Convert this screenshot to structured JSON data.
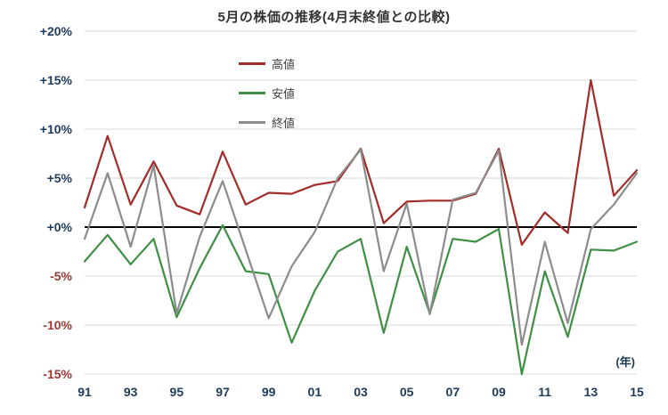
{
  "chart_data": {
    "type": "line",
    "title": "5月の株価の推移(4月末終値との比較)",
    "x_axis_unit": "(年)",
    "x_years": [
      1991,
      1992,
      1993,
      1994,
      1995,
      1996,
      1997,
      1998,
      1999,
      2000,
      2001,
      2002,
      2003,
      2004,
      2005,
      2006,
      2007,
      2008,
      2009,
      2010,
      2011,
      2012,
      2013,
      2014,
      2015
    ],
    "x_tick_indices": [
      0,
      2,
      4,
      6,
      8,
      10,
      12,
      14,
      16,
      18,
      20,
      22,
      24
    ],
    "x_tick_labels": [
      "91",
      "93",
      "95",
      "97",
      "99",
      "01",
      "03",
      "05",
      "07",
      "09",
      "11",
      "13",
      "15"
    ],
    "ylim": [
      -15,
      20
    ],
    "y_ticks": [
      {
        "label": "+20%",
        "value": 20
      },
      {
        "label": "+15%",
        "value": 15
      },
      {
        "label": "+10%",
        "value": 10
      },
      {
        "label": "+5%",
        "value": 5
      },
      {
        "label": "+0%",
        "value": 0
      },
      {
        "label": "-5%",
        "value": -5
      },
      {
        "label": "-10%",
        "value": -10
      },
      {
        "label": "-15%",
        "value": -15
      }
    ],
    "grid": true,
    "legend_position": "inside-upper-left",
    "series": [
      {
        "key": "high",
        "name": "高値",
        "color": "#a12c28",
        "values": [
          2.0,
          9.3,
          2.3,
          6.7,
          2.2,
          1.3,
          7.7,
          2.3,
          3.5,
          3.4,
          4.3,
          4.7,
          8.0,
          0.4,
          2.6,
          2.7,
          2.7,
          3.4,
          8.0,
          -1.8,
          1.5,
          -0.6,
          15.0,
          3.2,
          5.8
        ]
      },
      {
        "key": "low",
        "name": "安値",
        "color": "#3f8f44",
        "values": [
          -3.5,
          -0.8,
          -3.8,
          -1.2,
          -9.2,
          -4.2,
          0.2,
          -4.5,
          -4.8,
          -11.8,
          -6.5,
          -2.5,
          -1.2,
          -10.8,
          -2.0,
          -8.8,
          -1.2,
          -1.5,
          -0.2,
          -15.0,
          -4.5,
          -11.2,
          -2.3,
          -2.4,
          -1.5
        ]
      },
      {
        "key": "close",
        "name": "終値",
        "color": "#8c8c8c",
        "values": [
          -1.2,
          5.5,
          -2.0,
          6.3,
          -8.8,
          -1.0,
          4.7,
          -2.3,
          -9.3,
          -4.0,
          -0.5,
          5.0,
          7.9,
          -4.5,
          2.4,
          -8.9,
          2.8,
          3.5,
          7.8,
          -12.0,
          -1.5,
          -9.8,
          -0.2,
          2.3,
          5.5
        ]
      }
    ],
    "colors": {
      "tick_positive": "#1f3b5c",
      "tick_negative": "#9c3734",
      "grid_line": "#d9d9d9",
      "zero_line": "#000000",
      "title": "#333333",
      "legend_text": "#404040"
    }
  }
}
